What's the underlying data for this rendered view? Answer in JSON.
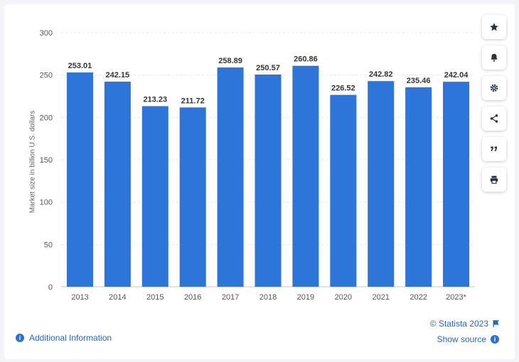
{
  "chart_data": {
    "type": "bar",
    "categories": [
      "2013",
      "2014",
      "2015",
      "2016",
      "2017",
      "2018",
      "2019",
      "2020",
      "2021",
      "2022",
      "2023*"
    ],
    "values": [
      253.01,
      242.15,
      213.23,
      211.72,
      258.89,
      250.57,
      260.86,
      226.52,
      242.82,
      235.46,
      242.04
    ],
    "value_labels": [
      "253.01",
      "242.15",
      "213.23",
      "211.72",
      "258.89",
      "250.57",
      "260.86",
      "226.52",
      "242.82",
      "235.46",
      "242.04"
    ],
    "ylabel": "Market size in billion U.S. dollars",
    "ylim": [
      0,
      300
    ],
    "yticks": [
      "0",
      "50",
      "100",
      "150",
      "200",
      "250",
      "300"
    ],
    "grid": true,
    "bar_color": "#2d75d9"
  },
  "toolbar": {
    "buttons": [
      {
        "name": "star-icon"
      },
      {
        "name": "bell-icon"
      },
      {
        "name": "gear-icon"
      },
      {
        "name": "share-icon"
      },
      {
        "name": "quote-icon"
      },
      {
        "name": "print-icon"
      }
    ]
  },
  "footer": {
    "additional_info": "Additional Information",
    "copyright": "© Statista 2023",
    "show_source": "Show source"
  },
  "colors": {
    "accent": "#2466c9"
  }
}
